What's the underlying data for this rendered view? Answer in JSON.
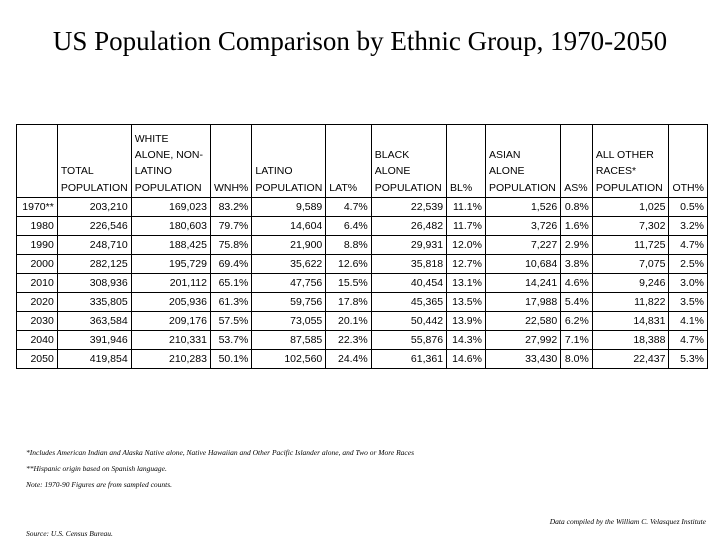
{
  "title": "US Population Comparison by Ethnic Group, 1970-2050",
  "table": {
    "headers": [
      "",
      "TOTAL POPULATION",
      "WHITE ALONE, NON-LATINO POPULATION",
      "WNH%",
      "LATINO POPULATION",
      "LAT%",
      "BLACK ALONE POPULATION",
      "BL%",
      "ASIAN ALONE POPULATION",
      "AS%",
      "ALL OTHER RACES* POPULATION",
      "OTH%"
    ],
    "rows": [
      [
        "1970**",
        "203,210",
        "169,023",
        "83.2%",
        "9,589",
        "4.7%",
        "22,539",
        "11.1%",
        "1,526",
        "0.8%",
        "1,025",
        "0.5%"
      ],
      [
        "1980",
        "226,546",
        "180,603",
        "79.7%",
        "14,604",
        "6.4%",
        "26,482",
        "11.7%",
        "3,726",
        "1.6%",
        "7,302",
        "3.2%"
      ],
      [
        "1990",
        "248,710",
        "188,425",
        "75.8%",
        "21,900",
        "8.8%",
        "29,931",
        "12.0%",
        "7,227",
        "2.9%",
        "11,725",
        "4.7%"
      ],
      [
        "2000",
        "282,125",
        "195,729",
        "69.4%",
        "35,622",
        "12.6%",
        "35,818",
        "12.7%",
        "10,684",
        "3.8%",
        "7,075",
        "2.5%"
      ],
      [
        "2010",
        "308,936",
        "201,112",
        "65.1%",
        "47,756",
        "15.5%",
        "40,454",
        "13.1%",
        "14,241",
        "4.6%",
        "9,246",
        "3.0%"
      ],
      [
        "2020",
        "335,805",
        "205,936",
        "61.3%",
        "59,756",
        "17.8%",
        "45,365",
        "13.5%",
        "17,988",
        "5.4%",
        "11,822",
        "3.5%"
      ],
      [
        "2030",
        "363,584",
        "209,176",
        "57.5%",
        "73,055",
        "20.1%",
        "50,442",
        "13.9%",
        "22,580",
        "6.2%",
        "14,831",
        "4.1%"
      ],
      [
        "2040",
        "391,946",
        "210,331",
        "53.7%",
        "87,585",
        "22.3%",
        "55,876",
        "14.3%",
        "27,992",
        "7.1%",
        "18,388",
        "4.7%"
      ],
      [
        "2050",
        "419,854",
        "210,283",
        "50.1%",
        "102,560",
        "24.4%",
        "61,361",
        "14.6%",
        "33,430",
        "8.0%",
        "22,437",
        "5.3%"
      ]
    ]
  },
  "notes": [
    "*Includes American Indian and Alaska Native alone, Native Hawaiian and Other Pacific Islander alone, and Two or More Races",
    "**Hispanic origin based on Spanish language.",
    "Note: 1970-90 Figures are from sampled counts."
  ],
  "compiled_by": "Data compiled by the William C. Velasquez Institute",
  "source": "Source: U.S. Census Bureau."
}
